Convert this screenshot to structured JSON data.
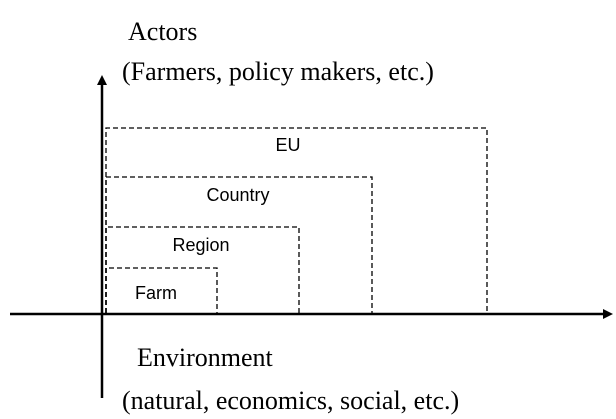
{
  "y_axis": {
    "title": "Actors",
    "subtitle": "(Farmers, policy makers, etc.)"
  },
  "x_axis": {
    "title": "Environment",
    "subtitle": "(natural, economics, social, etc.)"
  },
  "levels": [
    {
      "label": "EU"
    },
    {
      "label": "Country"
    },
    {
      "label": "Region"
    },
    {
      "label": "Farm"
    }
  ]
}
